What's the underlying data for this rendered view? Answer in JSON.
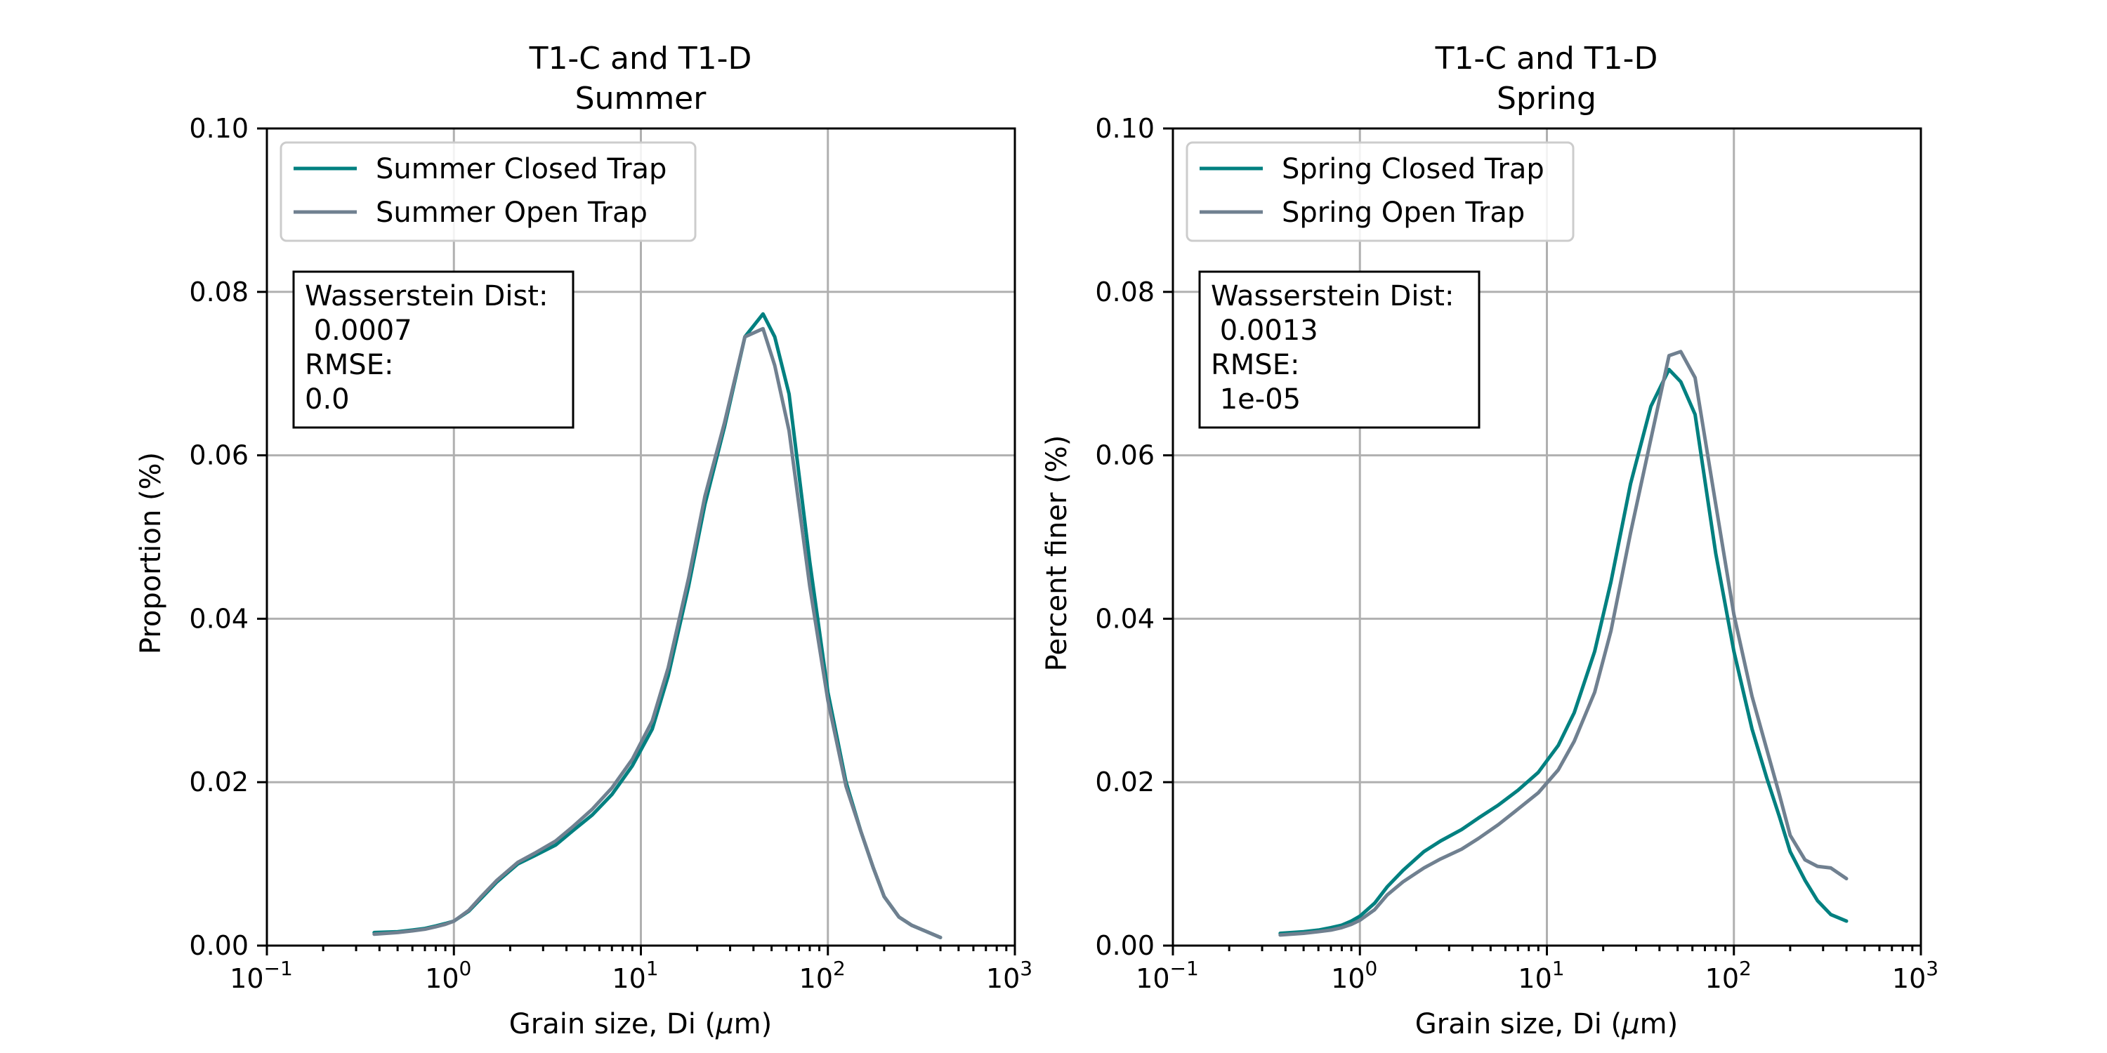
{
  "chart_data": [
    {
      "type": "line",
      "title": [
        "T1-C and T1-D",
        "Summer"
      ],
      "xlabel": "Grain size, Di ($\\mu$m)",
      "ylabel": "Proportion (%)",
      "xscale": "log",
      "xlim": [
        0.1,
        1000
      ],
      "ylim": [
        0,
        0.1
      ],
      "x_ticks": [
        0.1,
        1,
        10,
        100,
        1000
      ],
      "x_tick_labels": [
        {
          "base": "10",
          "exp": "−1"
        },
        {
          "base": "10",
          "exp": "0"
        },
        {
          "base": "10",
          "exp": "1"
        },
        {
          "base": "10",
          "exp": "2"
        },
        {
          "base": "10",
          "exp": "3"
        }
      ],
      "y_ticks": [
        0,
        0.02,
        0.04,
        0.06,
        0.08,
        0.1
      ],
      "y_tick_labels": [
        "0.00",
        "0.02",
        "0.04",
        "0.06",
        "0.08",
        "0.10"
      ],
      "grid": true,
      "legend": {
        "location": "upper-left"
      },
      "annotation": [
        "Wasserstein Dist:",
        " 0.0007",
        "RMSE:",
        "0.0"
      ],
      "series": [
        {
          "name": "Summer Closed Trap",
          "color": "#008080",
          "x": [
            0.375,
            0.5,
            0.6,
            0.7,
            0.8,
            0.9,
            1.0,
            1.2,
            1.4,
            1.7,
            2.2,
            2.7,
            3.5,
            4.3,
            5.5,
            7,
            9,
            11.5,
            14,
            18,
            22,
            28,
            36,
            45,
            52,
            62,
            80,
            100,
            125,
            150,
            175,
            200,
            240,
            280,
            330,
            400
          ],
          "y": [
            0.0016,
            0.0017,
            0.0019,
            0.0021,
            0.0024,
            0.0027,
            0.003,
            0.0042,
            0.0058,
            0.0078,
            0.01,
            0.011,
            0.0123,
            0.014,
            0.016,
            0.0185,
            0.022,
            0.0265,
            0.033,
            0.044,
            0.054,
            0.0635,
            0.0745,
            0.0773,
            0.0745,
            0.0675,
            0.047,
            0.031,
            0.02,
            0.014,
            0.0095,
            0.006,
            0.0035,
            0.0025,
            0.0018,
            0.001
          ]
        },
        {
          "name": "Summer Open Trap",
          "color": "#708090",
          "x": [
            0.375,
            0.5,
            0.6,
            0.7,
            0.8,
            0.9,
            1.0,
            1.2,
            1.4,
            1.7,
            2.2,
            2.7,
            3.5,
            4.3,
            5.5,
            7,
            9,
            11.5,
            14,
            18,
            22,
            28,
            36,
            45,
            52,
            62,
            80,
            100,
            125,
            150,
            175,
            200,
            240,
            280,
            330,
            400
          ],
          "y": [
            0.0014,
            0.0016,
            0.0018,
            0.002,
            0.0023,
            0.0026,
            0.003,
            0.0043,
            0.006,
            0.008,
            0.0102,
            0.0113,
            0.0128,
            0.0145,
            0.0167,
            0.0193,
            0.0228,
            0.0275,
            0.034,
            0.045,
            0.055,
            0.064,
            0.0745,
            0.0755,
            0.071,
            0.063,
            0.044,
            0.03,
            0.0195,
            0.014,
            0.0095,
            0.006,
            0.0035,
            0.0025,
            0.0018,
            0.001
          ]
        }
      ]
    },
    {
      "type": "line",
      "title": [
        "T1-C and T1-D",
        "Spring"
      ],
      "xlabel": "Grain size, Di ($\\mu$m)",
      "ylabel": "Percent finer (%)",
      "xscale": "log",
      "xlim": [
        0.1,
        1000
      ],
      "ylim": [
        0,
        0.1
      ],
      "x_ticks": [
        0.1,
        1,
        10,
        100,
        1000
      ],
      "x_tick_labels": [
        {
          "base": "10",
          "exp": "−1"
        },
        {
          "base": "10",
          "exp": "0"
        },
        {
          "base": "10",
          "exp": "1"
        },
        {
          "base": "10",
          "exp": "2"
        },
        {
          "base": "10",
          "exp": "3"
        }
      ],
      "y_ticks": [
        0,
        0.02,
        0.04,
        0.06,
        0.08,
        0.1
      ],
      "y_tick_labels": [
        "0.00",
        "0.02",
        "0.04",
        "0.06",
        "0.08",
        "0.10"
      ],
      "grid": true,
      "legend": {
        "location": "upper-left"
      },
      "annotation": [
        "Wasserstein Dist:",
        " 0.0013",
        "RMSE:",
        " 1e-05"
      ],
      "series": [
        {
          "name": "Spring Closed Trap",
          "color": "#008080",
          "x": [
            0.375,
            0.5,
            0.6,
            0.7,
            0.8,
            0.9,
            1.0,
            1.2,
            1.4,
            1.7,
            2.2,
            2.7,
            3.5,
            4.3,
            5.5,
            7,
            9,
            11.5,
            14,
            18,
            22,
            28,
            36,
            45,
            52,
            62,
            80,
            100,
            125,
            150,
            175,
            200,
            240,
            280,
            330,
            400
          ],
          "y": [
            0.0015,
            0.0017,
            0.0019,
            0.0022,
            0.0025,
            0.003,
            0.0036,
            0.0052,
            0.0072,
            0.0092,
            0.0115,
            0.0128,
            0.0142,
            0.0156,
            0.0172,
            0.019,
            0.0212,
            0.0245,
            0.0285,
            0.036,
            0.0445,
            0.0565,
            0.066,
            0.0705,
            0.069,
            0.065,
            0.048,
            0.036,
            0.0265,
            0.0205,
            0.0158,
            0.0115,
            0.008,
            0.0055,
            0.0038,
            0.003
          ]
        },
        {
          "name": "Spring Open Trap",
          "color": "#708090",
          "x": [
            0.375,
            0.5,
            0.6,
            0.7,
            0.8,
            0.9,
            1.0,
            1.2,
            1.4,
            1.7,
            2.2,
            2.7,
            3.5,
            4.3,
            5.5,
            7,
            9,
            11.5,
            14,
            18,
            22,
            28,
            36,
            45,
            52,
            62,
            80,
            100,
            125,
            150,
            175,
            200,
            240,
            280,
            330,
            400
          ],
          "y": [
            0.0013,
            0.0015,
            0.0017,
            0.0019,
            0.0022,
            0.0026,
            0.0031,
            0.0044,
            0.0062,
            0.0078,
            0.0095,
            0.0106,
            0.0118,
            0.0131,
            0.0148,
            0.0167,
            0.0187,
            0.0215,
            0.025,
            0.031,
            0.0385,
            0.0505,
            0.062,
            0.0722,
            0.0727,
            0.0695,
            0.054,
            0.0405,
            0.0305,
            0.024,
            0.0185,
            0.0135,
            0.0105,
            0.0097,
            0.0095,
            0.0082
          ]
        }
      ]
    }
  ]
}
